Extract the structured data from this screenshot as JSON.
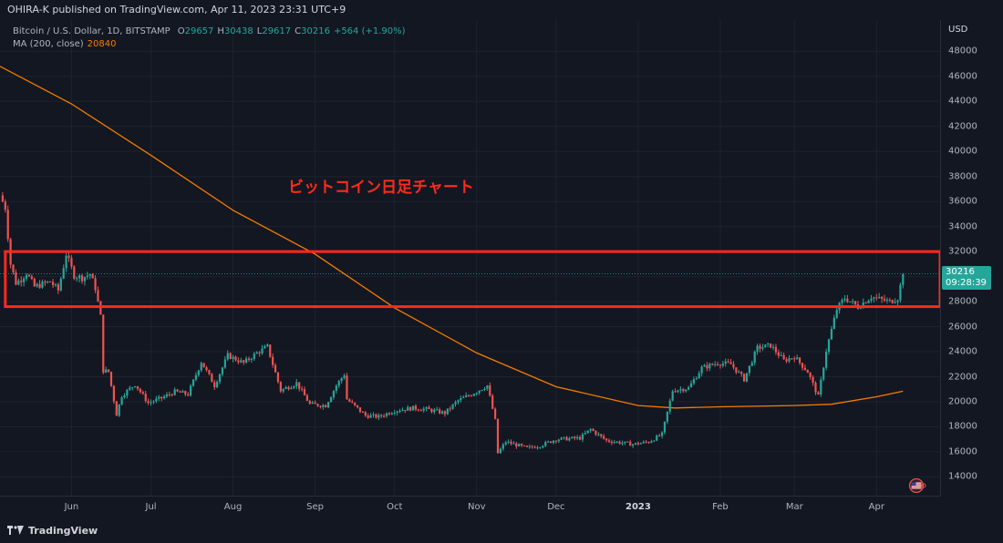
{
  "header": {
    "published_line": "OHIRA-K published on TradingView.com, Apr 11, 2023 23:31 UTC+9"
  },
  "legend": {
    "symbol": "Bitcoin / U.S. Dollar, 1D, BITSTAMP",
    "ohlc": [
      {
        "key": "O",
        "value": "29657"
      },
      {
        "key": "H",
        "value": "30438"
      },
      {
        "key": "L",
        "value": "29617"
      },
      {
        "key": "C",
        "value": "30216"
      }
    ],
    "change": "+564 (+1.90%)",
    "ma_label": "MA (200, close)",
    "ma_value": "20840"
  },
  "annotation": {
    "text": "ビットコイン日足チャート",
    "color": "#ff2a1a"
  },
  "price_axis": {
    "unit": "USD",
    "last_price": "30216",
    "countdown": "09:28:39"
  },
  "footer": {
    "brand": "TradingView"
  },
  "colors": {
    "background": "#131722",
    "up": "#26a69a",
    "down": "#ef5350",
    "ma": "#f57c00",
    "box": "#ff2a1a",
    "grid": "#1e222d"
  },
  "chart_data": {
    "type": "line",
    "title": "",
    "xlabel": "",
    "ylabel": "USD",
    "ylim": [
      12500,
      50500
    ],
    "y_ticks": [
      14000,
      16000,
      18000,
      20000,
      22000,
      24000,
      26000,
      28000,
      30000,
      32000,
      34000,
      36000,
      38000,
      40000,
      42000,
      44000,
      46000,
      48000
    ],
    "x_ticks": [
      {
        "label": "Jun",
        "date": "2022-06-01",
        "bold": false
      },
      {
        "label": "Jul",
        "date": "2022-07-01",
        "bold": false
      },
      {
        "label": "Aug",
        "date": "2022-08-01",
        "bold": false
      },
      {
        "label": "Sep",
        "date": "2022-09-01",
        "bold": false
      },
      {
        "label": "Oct",
        "date": "2022-10-01",
        "bold": false
      },
      {
        "label": "Nov",
        "date": "2022-11-01",
        "bold": false
      },
      {
        "label": "Dec",
        "date": "2022-12-01",
        "bold": false
      },
      {
        "label": "2023",
        "date": "2023-01-01",
        "bold": true
      },
      {
        "label": "Feb",
        "date": "2023-02-01",
        "bold": false
      },
      {
        "label": "Mar",
        "date": "2023-03-01",
        "bold": false
      },
      {
        "label": "Apr",
        "date": "2023-04-01",
        "bold": false
      }
    ],
    "x_range": [
      "2022-05-05",
      "2023-04-25"
    ],
    "series": [
      {
        "type": "price",
        "points": [
          [
            "2022-05-05",
            36500
          ],
          [
            "2022-05-07",
            35500
          ],
          [
            "2022-05-09",
            31000
          ],
          [
            "2022-05-11",
            29500
          ],
          [
            "2022-05-13",
            29800
          ],
          [
            "2022-05-15",
            30300
          ],
          [
            "2022-05-18",
            29200
          ],
          [
            "2022-05-21",
            29400
          ],
          [
            "2022-05-24",
            29600
          ],
          [
            "2022-05-27",
            28900
          ],
          [
            "2022-05-30",
            31800
          ],
          [
            "2022-06-02",
            30100
          ],
          [
            "2022-06-05",
            29900
          ],
          [
            "2022-06-08",
            30200
          ],
          [
            "2022-06-10",
            29100
          ],
          [
            "2022-06-12",
            26800
          ],
          [
            "2022-06-13",
            22500
          ],
          [
            "2022-06-15",
            22400
          ],
          [
            "2022-06-18",
            19000
          ],
          [
            "2022-06-20",
            20500
          ],
          [
            "2022-06-25",
            21400
          ],
          [
            "2022-06-30",
            19900
          ],
          [
            "2022-07-05",
            20300
          ],
          [
            "2022-07-10",
            20800
          ],
          [
            "2022-07-15",
            20600
          ],
          [
            "2022-07-20",
            23200
          ],
          [
            "2022-07-25",
            21300
          ],
          [
            "2022-07-30",
            23700
          ],
          [
            "2022-08-05",
            23100
          ],
          [
            "2022-08-10",
            23900
          ],
          [
            "2022-08-14",
            24400
          ],
          [
            "2022-08-19",
            20900
          ],
          [
            "2022-08-25",
            21500
          ],
          [
            "2022-08-30",
            19800
          ],
          [
            "2022-09-05",
            19700
          ],
          [
            "2022-09-09",
            21300
          ],
          [
            "2022-09-12",
            22200
          ],
          [
            "2022-09-13",
            20200
          ],
          [
            "2022-09-20",
            18900
          ],
          [
            "2022-09-25",
            18800
          ],
          [
            "2022-10-01",
            19300
          ],
          [
            "2022-10-08",
            19500
          ],
          [
            "2022-10-13",
            19400
          ],
          [
            "2022-10-20",
            19100
          ],
          [
            "2022-10-25",
            20100
          ],
          [
            "2022-10-30",
            20600
          ],
          [
            "2022-11-05",
            21300
          ],
          [
            "2022-11-08",
            18500
          ],
          [
            "2022-11-09",
            15900
          ],
          [
            "2022-11-12",
            16800
          ],
          [
            "2022-11-20",
            16300
          ],
          [
            "2022-11-25",
            16500
          ],
          [
            "2022-12-01",
            17000
          ],
          [
            "2022-12-10",
            17100
          ],
          [
            "2022-12-14",
            17800
          ],
          [
            "2022-12-20",
            16900
          ],
          [
            "2022-12-30",
            16600
          ],
          [
            "2023-01-05",
            16800
          ],
          [
            "2023-01-10",
            17400
          ],
          [
            "2023-01-14",
            20900
          ],
          [
            "2023-01-20",
            21100
          ],
          [
            "2023-01-25",
            22700
          ],
          [
            "2023-01-31",
            23100
          ],
          [
            "2023-02-05",
            23000
          ],
          [
            "2023-02-10",
            21800
          ],
          [
            "2023-02-15",
            24300
          ],
          [
            "2023-02-20",
            24500
          ],
          [
            "2023-02-25",
            23300
          ],
          [
            "2023-03-01",
            23600
          ],
          [
            "2023-03-06",
            22400
          ],
          [
            "2023-03-10",
            20400
          ],
          [
            "2023-03-13",
            24100
          ],
          [
            "2023-03-17",
            27400
          ],
          [
            "2023-03-20",
            28300
          ],
          [
            "2023-03-25",
            27600
          ],
          [
            "2023-03-30",
            28400
          ],
          [
            "2023-04-02",
            28200
          ],
          [
            "2023-04-06",
            28000
          ],
          [
            "2023-04-09",
            28300
          ],
          [
            "2023-04-11",
            30216
          ]
        ]
      },
      {
        "type": "ma",
        "name": "MA (200, close)",
        "points": [
          [
            "2022-05-05",
            46800
          ],
          [
            "2022-06-01",
            43800
          ],
          [
            "2022-07-01",
            39700
          ],
          [
            "2022-08-01",
            35300
          ],
          [
            "2022-09-01",
            31800
          ],
          [
            "2022-10-01",
            27500
          ],
          [
            "2022-11-01",
            23900
          ],
          [
            "2022-12-01",
            21200
          ],
          [
            "2023-01-01",
            19700
          ],
          [
            "2023-01-15",
            19500
          ],
          [
            "2023-02-01",
            19600
          ],
          [
            "2023-03-01",
            19700
          ],
          [
            "2023-03-15",
            19800
          ],
          [
            "2023-04-01",
            20400
          ],
          [
            "2023-04-11",
            20840
          ]
        ]
      }
    ],
    "highlight_box": {
      "y_low": 27600,
      "y_high": 32000,
      "x_start": "2022-05-07",
      "x_end": "2023-04-25"
    },
    "last_price_line": 30216,
    "grid": true
  }
}
